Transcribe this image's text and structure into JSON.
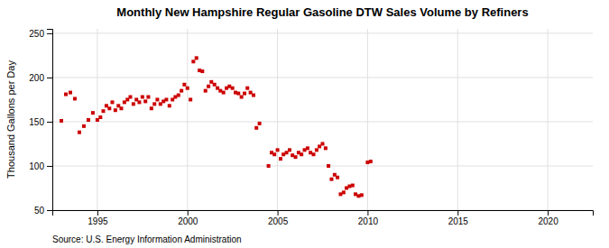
{
  "chart_data": {
    "type": "scatter",
    "title": "Monthly New Hampshire Regular Gasoline DTW Sales Volume by Refiners",
    "ylabel": "Thousand Gallons per Day",
    "annotations": [
      "Source: U.S. Energy Information Administration"
    ],
    "color": "#cc0000",
    "marker": "square",
    "grid": true,
    "xlim": [
      1992.5,
      2022.5
    ],
    "ylim": [
      50,
      255
    ],
    "xticks": [
      1995,
      2000,
      2005,
      2010,
      2015,
      2020
    ],
    "yticks": [
      50,
      100,
      150,
      200,
      250
    ],
    "x": [
      1993.0,
      1993.25,
      1993.5,
      1993.75,
      1994.0,
      1994.25,
      1994.5,
      1994.75,
      1995.0,
      1995.17,
      1995.33,
      1995.5,
      1995.67,
      1995.83,
      1996.0,
      1996.17,
      1996.33,
      1996.5,
      1996.67,
      1996.83,
      1997.0,
      1997.17,
      1997.33,
      1997.5,
      1997.67,
      1997.83,
      1998.0,
      1998.17,
      1998.33,
      1998.5,
      1998.67,
      1998.83,
      1999.0,
      1999.17,
      1999.33,
      1999.5,
      1999.67,
      1999.83,
      2000.0,
      2000.17,
      2000.33,
      2000.5,
      2000.67,
      2000.83,
      2001.0,
      2001.17,
      2001.33,
      2001.5,
      2001.67,
      2001.83,
      2002.0,
      2002.17,
      2002.33,
      2002.5,
      2002.67,
      2002.83,
      2003.0,
      2003.17,
      2003.33,
      2003.5,
      2003.67,
      2003.83,
      2004.0,
      2004.5,
      2004.67,
      2004.83,
      2005.0,
      2005.17,
      2005.33,
      2005.5,
      2005.67,
      2005.83,
      2006.0,
      2006.17,
      2006.33,
      2006.5,
      2006.67,
      2006.83,
      2007.0,
      2007.17,
      2007.33,
      2007.5,
      2007.67,
      2007.83,
      2008.0,
      2008.17,
      2008.33,
      2008.5,
      2008.67,
      2008.83,
      2009.0,
      2009.17,
      2009.33,
      2009.5,
      2009.67,
      2010.0,
      2010.17
    ],
    "values": [
      151,
      181,
      183,
      176,
      138,
      145,
      152,
      160,
      152,
      155,
      162,
      168,
      165,
      172,
      163,
      168,
      165,
      172,
      175,
      178,
      170,
      175,
      172,
      178,
      173,
      178,
      165,
      170,
      175,
      170,
      173,
      175,
      168,
      175,
      178,
      180,
      185,
      192,
      188,
      175,
      218,
      222,
      208,
      207,
      185,
      190,
      195,
      192,
      188,
      185,
      183,
      188,
      190,
      188,
      183,
      182,
      178,
      182,
      188,
      183,
      180,
      143,
      148,
      100,
      115,
      113,
      118,
      108,
      113,
      115,
      118,
      112,
      110,
      115,
      113,
      118,
      120,
      115,
      113,
      118,
      122,
      125,
      120,
      100,
      85,
      90,
      87,
      68,
      70,
      75,
      77,
      78,
      68,
      66,
      67,
      104,
      105
    ]
  }
}
